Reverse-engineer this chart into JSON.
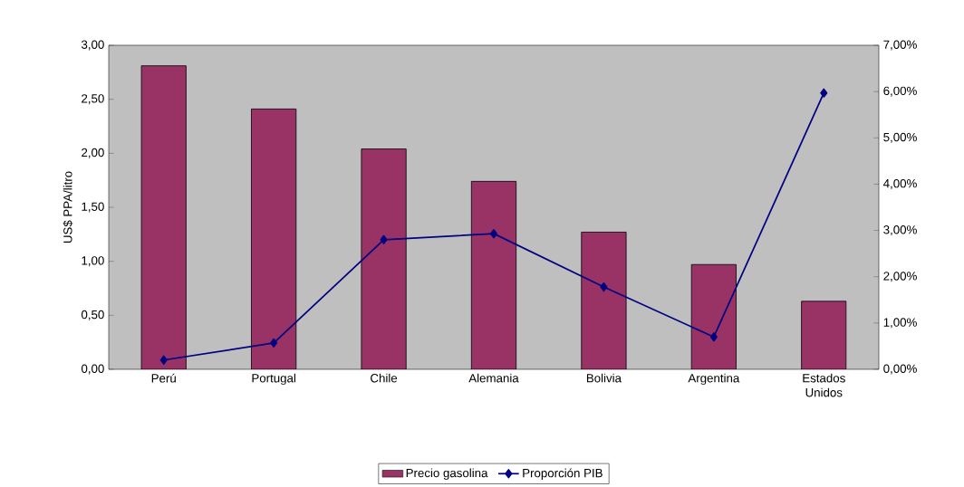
{
  "chart_data": {
    "type": "bar",
    "ylabel": "US$ PPA/litro",
    "categories": [
      "Perú",
      "Portugal",
      "Chile",
      "Alemania",
      "Bolivia",
      "Argentina",
      "Estados Unidos"
    ],
    "series": [
      {
        "name": "Precio gasolina",
        "color": "#993366",
        "values": [
          2.81,
          2.41,
          2.04,
          1.74,
          1.27,
          0.97,
          0.63
        ]
      },
      {
        "name": "Proporción PIB",
        "type": "line",
        "axis": "y2",
        "color": "#000080",
        "marker": "diamond",
        "values": [
          0.2,
          0.57,
          2.8,
          2.93,
          1.78,
          0.7,
          5.97
        ]
      }
    ],
    "ylim": [
      0,
      3
    ],
    "yticks": [
      {
        "value": 0,
        "label": "0,00"
      },
      {
        "value": 0.5,
        "label": "0,50"
      },
      {
        "value": 1,
        "label": "1,00"
      },
      {
        "value": 1.5,
        "label": "1,50"
      },
      {
        "value": 2,
        "label": "2,00"
      },
      {
        "value": 2.5,
        "label": "2,50"
      },
      {
        "value": 3,
        "label": "3,00"
      }
    ],
    "y2lim": [
      0,
      7
    ],
    "y2ticks": [
      {
        "value": 0,
        "label": "0,00%"
      },
      {
        "value": 1,
        "label": "1,00%"
      },
      {
        "value": 2,
        "label": "2,00%"
      },
      {
        "value": 3,
        "label": "3,00%"
      },
      {
        "value": 4,
        "label": "4,00%"
      },
      {
        "value": 5,
        "label": "5,00%"
      },
      {
        "value": 6,
        "label": "6,00%"
      },
      {
        "value": 7,
        "label": "7,00%"
      }
    ],
    "grid": false,
    "legend": "bottom"
  }
}
